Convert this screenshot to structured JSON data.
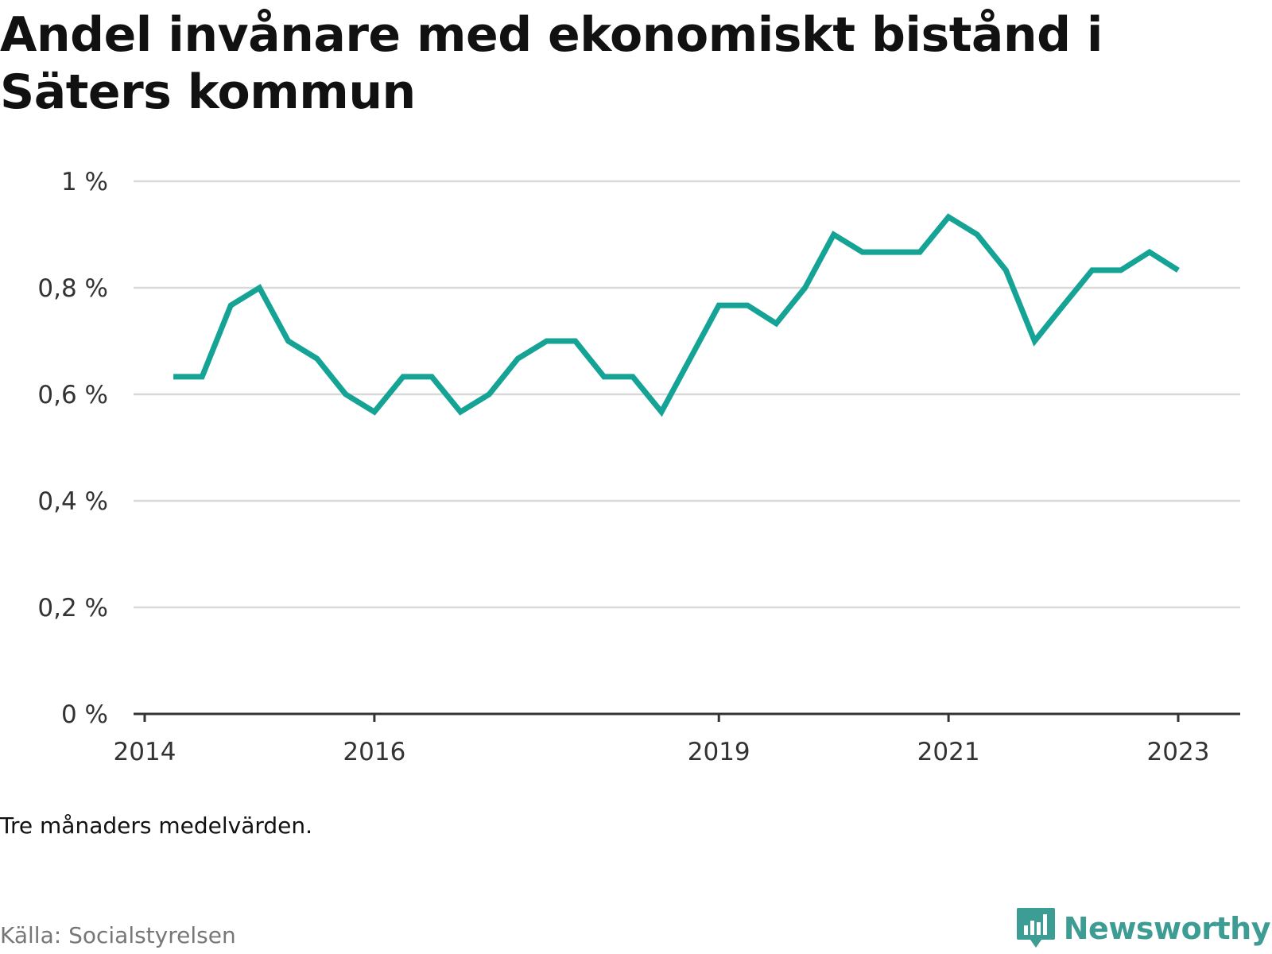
{
  "title": "Andel invånare med ekonomiskt bistånd i Säters kommun",
  "note": "Tre månaders medelvärden.",
  "source": "Källa: Socialstyrelsen",
  "brand": {
    "name": "Newsworthy",
    "icon": "newsworthy-logo-icon"
  },
  "colors": {
    "line": "#14a394",
    "grid": "#d9d9d9",
    "axis": "#333333",
    "brand": "#3d9c93"
  },
  "chart_data": {
    "type": "line",
    "title": "Andel invånare med ekonomiskt bistånd i Säters kommun",
    "xlabel": "",
    "ylabel": "",
    "ylim": [
      0,
      1
    ],
    "yticks": [
      0,
      0.2,
      0.4,
      0.6,
      0.8,
      1
    ],
    "ytick_labels": [
      "0 %",
      "0,2 %",
      "0,4 %",
      "0,6 %",
      "0,8 %",
      "1 %"
    ],
    "xticks": [
      "2014-01-01",
      "2016-01-01",
      "2019-01-01",
      "2021-01-01",
      "2023-01-01"
    ],
    "xtick_labels": [
      "2014",
      "2016",
      "2019",
      "2021",
      "2023"
    ],
    "grid": true,
    "series": [
      {
        "x": [
          "2014-04",
          "2014-07",
          "2014-10",
          "2015-01",
          "2015-04",
          "2015-07",
          "2015-10",
          "2016-01",
          "2016-04",
          "2016-07",
          "2016-10",
          "2017-01",
          "2017-04",
          "2017-07",
          "2017-10",
          "2018-01",
          "2018-04",
          "2018-07",
          "2018-10",
          "2019-01",
          "2019-04",
          "2019-07",
          "2019-10",
          "2020-01",
          "2020-04",
          "2020-07",
          "2020-10",
          "2021-01",
          "2021-04",
          "2021-07",
          "2021-10",
          "2022-01",
          "2022-04",
          "2022-07",
          "2022-10",
          "2023-01"
        ],
        "values": [
          0.633,
          0.633,
          0.767,
          0.8,
          0.7,
          0.667,
          0.6,
          0.567,
          0.633,
          0.633,
          0.567,
          0.6,
          0.667,
          0.7,
          0.7,
          0.633,
          0.633,
          0.567,
          0.667,
          0.767,
          0.767,
          0.733,
          0.8,
          0.9,
          0.867,
          0.867,
          0.867,
          0.933,
          0.9,
          0.833,
          0.7,
          0.767,
          0.833,
          0.833,
          0.867,
          0.833
        ]
      }
    ]
  }
}
